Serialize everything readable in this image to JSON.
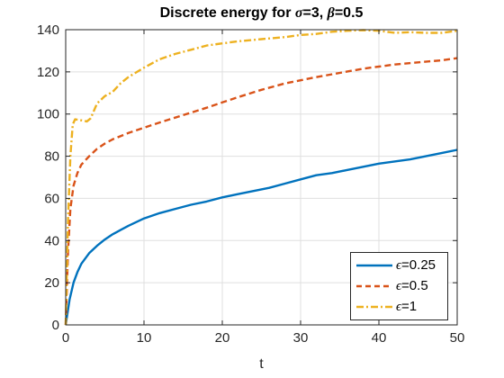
{
  "chart_data": {
    "type": "line",
    "title": {
      "prefix": "Discrete energy for ",
      "sigma_symbol": "σ",
      "sigma_eq": "=3, ",
      "beta_symbol": "β",
      "beta_eq": "=0.5"
    },
    "xlabel": "t",
    "ylabel": "",
    "xlim": [
      0,
      50
    ],
    "ylim": [
      0,
      140
    ],
    "xticks": [
      0,
      10,
      20,
      30,
      40,
      50
    ],
    "yticks": [
      0,
      20,
      40,
      60,
      80,
      100,
      120,
      140
    ],
    "grid": true,
    "legend_position": "bottom-right",
    "series": [
      {
        "name_symbol": "ϵ",
        "name_value": "=0.25",
        "color": "#0072BD",
        "style": "solid",
        "x": [
          0,
          0.5,
          1,
          1.5,
          2,
          3,
          4,
          5,
          6,
          7,
          8,
          10,
          12,
          14,
          16,
          18,
          20,
          22,
          24,
          26,
          28,
          30,
          32,
          34,
          36,
          38,
          40,
          42,
          44,
          46,
          48,
          50
        ],
        "y": [
          0,
          12,
          20,
          25,
          29,
          34,
          37.5,
          40.5,
          43,
          45,
          47,
          50.5,
          53,
          55,
          57,
          58.5,
          60.5,
          62,
          63.5,
          65,
          67,
          69,
          71,
          72,
          73.5,
          75,
          76.5,
          77.5,
          78.5,
          80,
          81.5,
          83
        ]
      },
      {
        "name_symbol": "ϵ",
        "name_value": "=0.5",
        "color": "#D95319",
        "style": "dashed",
        "x": [
          0,
          0.3,
          0.6,
          1,
          1.5,
          2,
          3,
          4,
          5,
          6,
          8,
          10,
          12,
          15,
          18,
          20,
          22,
          25,
          28,
          30,
          32,
          35,
          38,
          40,
          42,
          45,
          48,
          50
        ],
        "y": [
          0,
          35,
          55,
          66,
          72,
          76,
          80,
          83.5,
          86,
          88,
          91,
          93.5,
          96,
          99.5,
          103,
          105.5,
          108,
          111.5,
          114.5,
          116,
          117.5,
          119.5,
          121.5,
          122.5,
          123.5,
          124.5,
          125.5,
          126.5
        ]
      },
      {
        "name_symbol": "ϵ",
        "name_value": "=1",
        "color": "#EDB120",
        "style": "dashdot",
        "x": [
          0,
          0.3,
          0.6,
          0.9,
          1.2,
          2,
          2.7,
          3.2,
          4,
          5,
          6,
          7,
          8,
          10,
          12,
          14,
          16,
          18,
          20,
          22,
          25,
          28,
          30,
          32,
          34,
          36,
          38,
          40,
          42,
          44,
          46,
          48,
          50
        ],
        "y": [
          0,
          50,
          80,
          95,
          97.5,
          97,
          96.5,
          98,
          105,
          108.5,
          110.5,
          114.5,
          117.5,
          122,
          126,
          128.5,
          130.5,
          132.5,
          133.5,
          134.5,
          135.5,
          136.5,
          137.5,
          138,
          139,
          139.5,
          139.8,
          139.5,
          138.5,
          138.8,
          138.5,
          138.5,
          139.5
        ]
      }
    ]
  }
}
